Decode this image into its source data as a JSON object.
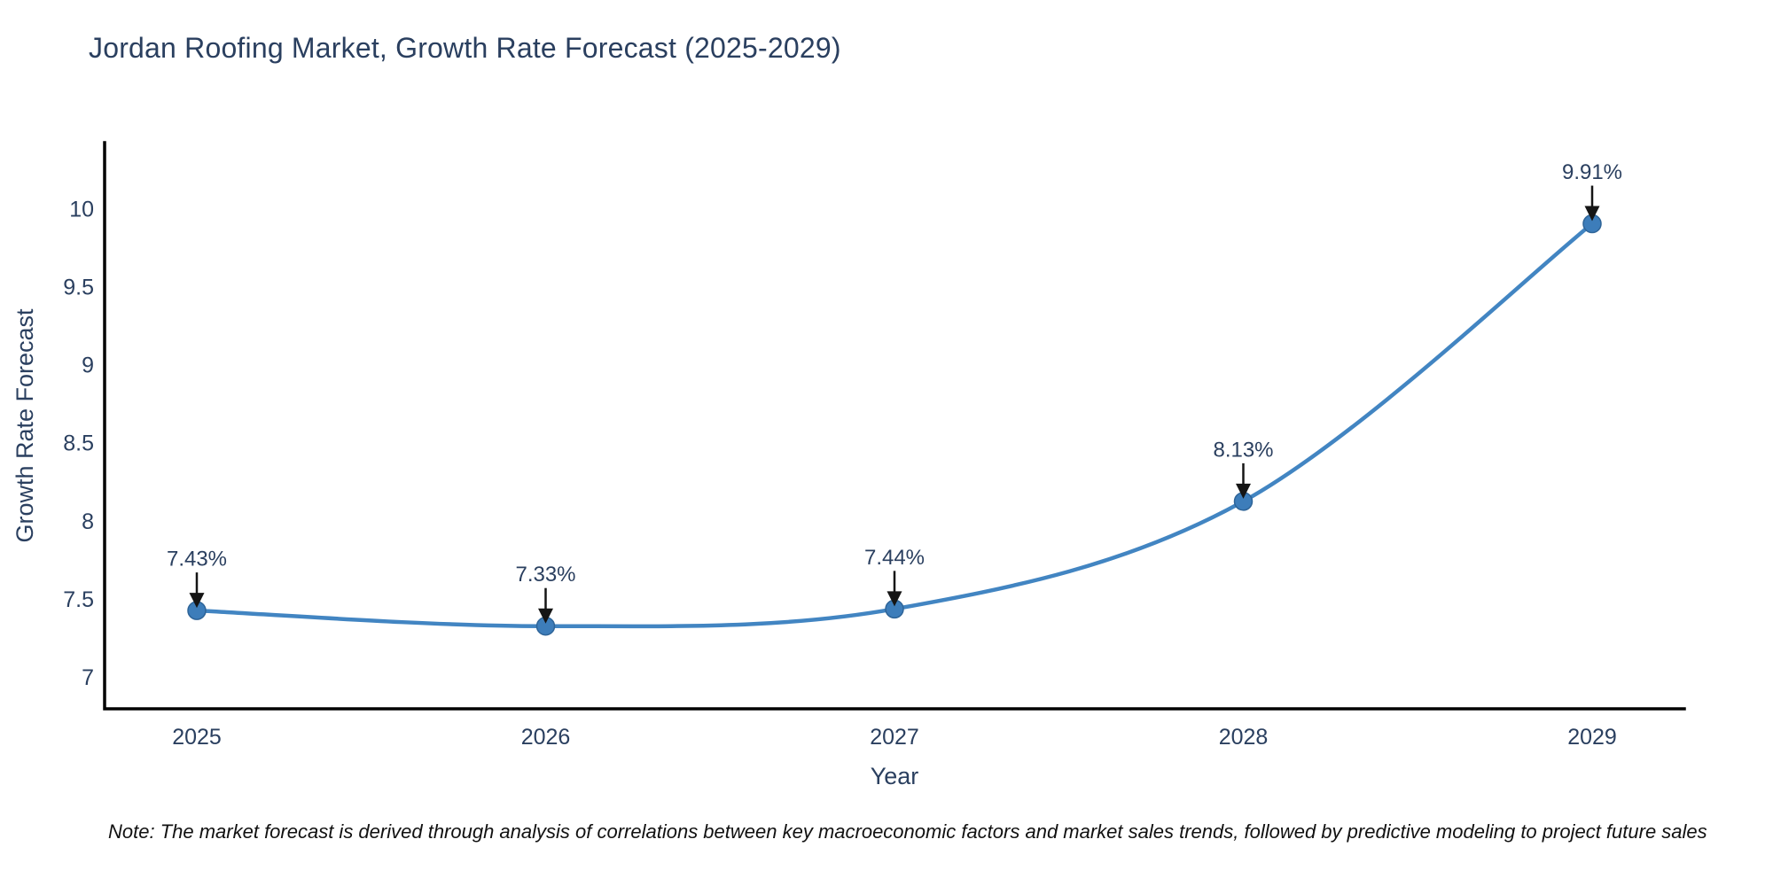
{
  "title": "Jordan Roofing Market, Growth Rate Forecast (2025-2029)",
  "note": "Note: The market forecast is derived through analysis of correlations between key macroeconomic factors and market sales trends, followed by predictive modeling to project future sales",
  "chart_data": {
    "type": "line",
    "title": "Jordan Roofing Market, Growth Rate Forecast (2025-2029)",
    "xlabel": "Year",
    "ylabel": "Growth Rate Forecast",
    "categories": [
      "2025",
      "2026",
      "2027",
      "2028",
      "2029"
    ],
    "series": [
      {
        "name": "Growth Rate Forecast",
        "values": [
          7.43,
          7.33,
          7.44,
          8.13,
          9.91
        ]
      }
    ],
    "annotations": [
      "7.43%",
      "7.33%",
      "7.44%",
      "8.13%",
      "9.91%"
    ],
    "yticks": [
      7,
      7.5,
      8,
      8.5,
      9,
      9.5,
      10
    ],
    "ylim": [
      6.8,
      10.43
    ],
    "grid": false,
    "legend_position": "none",
    "line_shape": "spline",
    "colors": {
      "line": "#4285c2",
      "marker_fill": "#3d7dba",
      "marker_stroke": "#2e6498",
      "axis": "#000000",
      "text": "#2a3f5f",
      "arrow": "#151515",
      "background": "#ffffff"
    }
  }
}
